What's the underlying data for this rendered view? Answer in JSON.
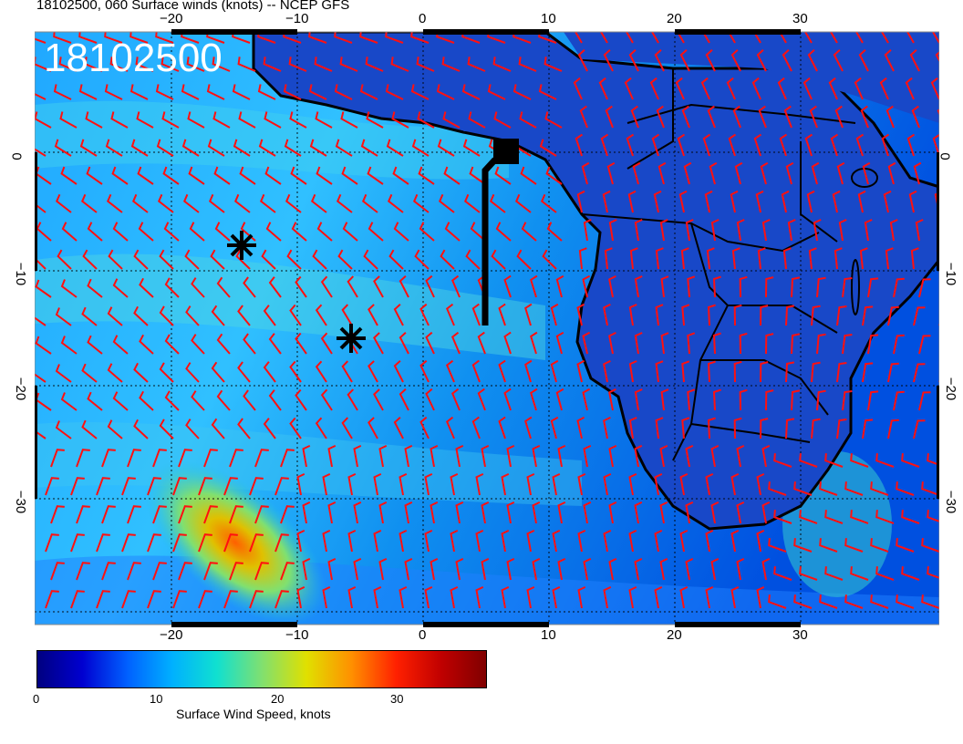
{
  "title": "18102500, 060 Surface winds (knots) -- NCEP GFS",
  "stamp": "18102500",
  "lon_ticks_top": [
    "−20",
    "−10",
    "0",
    "10",
    "20",
    "30"
  ],
  "lon_ticks_bottom": [
    "−20",
    "−10",
    "0",
    "10",
    "20",
    "30"
  ],
  "lat_ticks_left": [
    "0",
    "−10",
    "−20",
    "−30"
  ],
  "lat_ticks_right": [
    "0",
    "−10",
    "−20",
    "−30"
  ],
  "colorbar": {
    "title": "Surface Wind Speed, knots",
    "ticks": [
      "0",
      "10",
      "20",
      "30"
    ],
    "range": [
      0,
      37
    ],
    "colors": [
      "#000080",
      "#0000d0",
      "#0060ff",
      "#00b0ff",
      "#10e0d0",
      "#80e070",
      "#e0e000",
      "#ff9000",
      "#ff2000",
      "#c00000",
      "#800000"
    ]
  },
  "markers": {
    "stars": "asterisk-markers",
    "square": "square-marker"
  }
}
